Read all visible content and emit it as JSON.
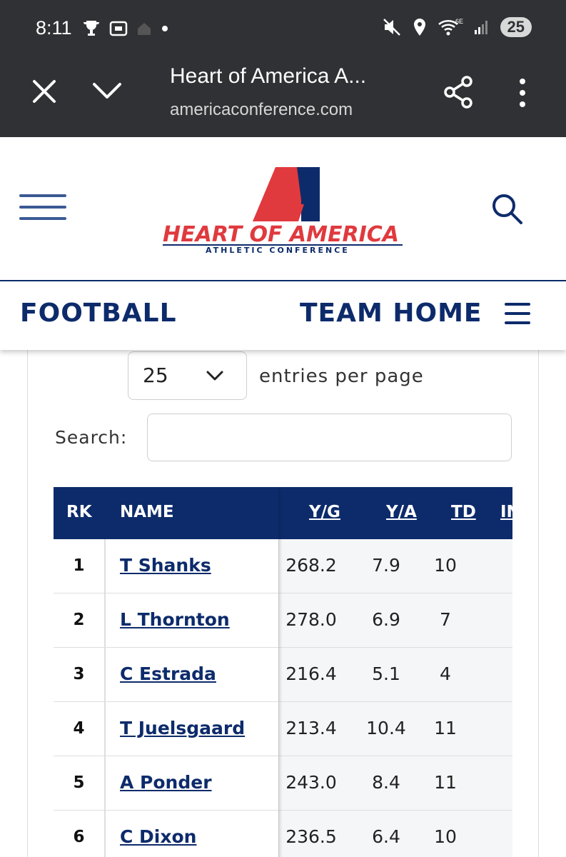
{
  "status_bar": {
    "time": "8:11",
    "battery": "25",
    "icons": [
      "trophy-icon",
      "screenshot-icon",
      "home-icon",
      "dot-icon",
      "mute-icon",
      "location-icon",
      "wifi-6e-icon",
      "signal-icon",
      "battery-icon"
    ]
  },
  "browser": {
    "title": "Heart of America A...",
    "host": "americaconference.com"
  },
  "site": {
    "logo_text": "HEART OF AMERICA",
    "logo_subtext": "ATHLETIC CONFERENCE",
    "colors": {
      "navy": "#0d2b6b",
      "red": "#e03a3e"
    }
  },
  "subnav": {
    "title": "FOOTBALL",
    "team_home": "TEAM HOME"
  },
  "controls": {
    "entries_value": "25",
    "entries_label": "entries per page",
    "search_label": "Search:",
    "search_value": ""
  },
  "table": {
    "headers": {
      "rk": "RK",
      "name": "NAME",
      "yg": "Y/G",
      "ya": "Y/A",
      "td": "TD",
      "int": "IN"
    },
    "rows": [
      {
        "rk": "1",
        "name": "T Shanks",
        "yg": "268.2",
        "ya": "7.9",
        "td": "10"
      },
      {
        "rk": "2",
        "name": "L Thornton",
        "yg": "278.0",
        "ya": "6.9",
        "td": "7"
      },
      {
        "rk": "3",
        "name": "C Estrada",
        "yg": "216.4",
        "ya": "5.1",
        "td": "4"
      },
      {
        "rk": "4",
        "name": "T Juelsgaard",
        "yg": "213.4",
        "ya": "10.4",
        "td": "11"
      },
      {
        "rk": "5",
        "name": "A Ponder",
        "yg": "243.0",
        "ya": "8.4",
        "td": "11"
      },
      {
        "rk": "6",
        "name": "C Dixon",
        "yg": "236.5",
        "ya": "6.4",
        "td": "10"
      }
    ]
  }
}
